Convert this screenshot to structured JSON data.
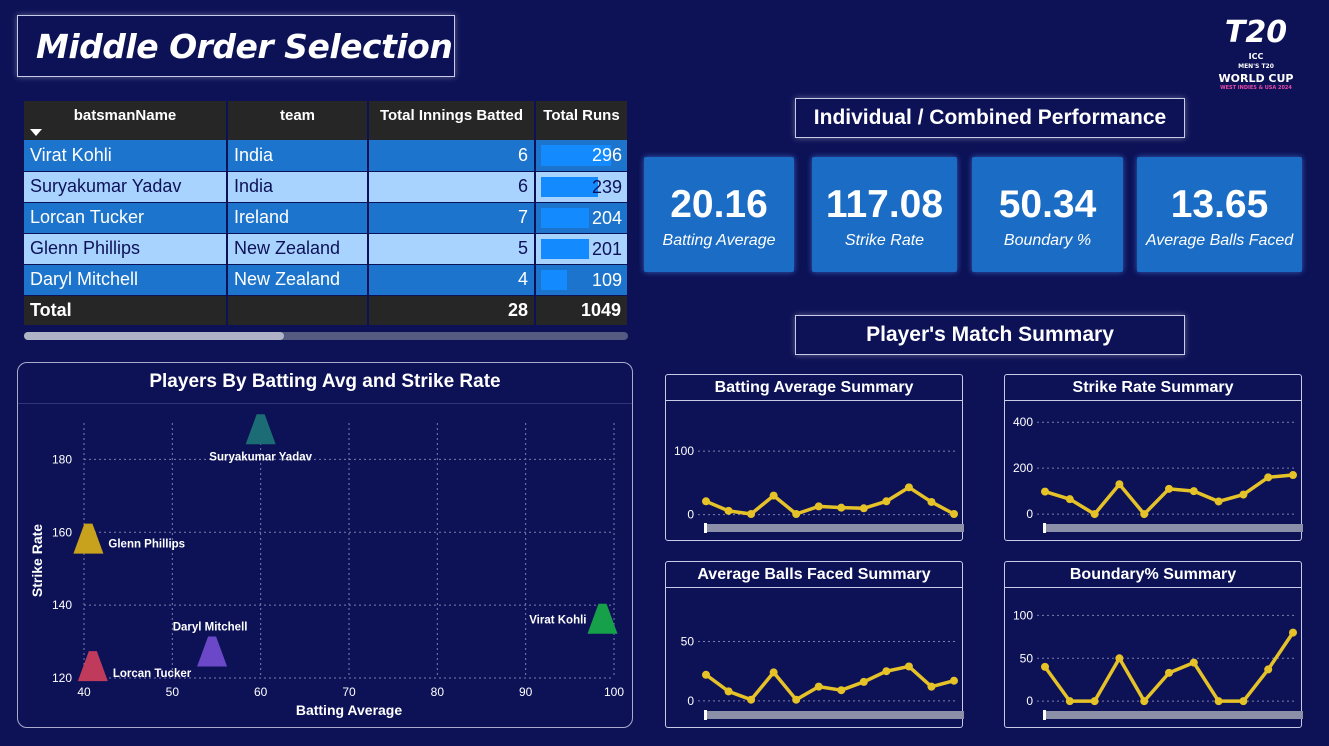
{
  "page_title": "Middle Order Selection",
  "logo": {
    "top": "T20",
    "icc": "ICC",
    "mens": "MEN'S T20",
    "wc": "WORLD CUP",
    "host": "WEST INDIES & USA 2024"
  },
  "table": {
    "headers": [
      "batsmanName",
      "team",
      "Total Innings Batted",
      "Total Runs"
    ],
    "rows": [
      {
        "name": "Virat Kohli",
        "team": "India",
        "innings": "6",
        "runs": "296",
        "runs_value": 296
      },
      {
        "name": "Suryakumar Yadav",
        "team": "India",
        "innings": "6",
        "runs": "239",
        "runs_value": 239
      },
      {
        "name": "Lorcan Tucker",
        "team": "Ireland",
        "innings": "7",
        "runs": "204",
        "runs_value": 204
      },
      {
        "name": "Glenn Phillips",
        "team": "New Zealand",
        "innings": "5",
        "runs": "201",
        "runs_value": 201
      },
      {
        "name": "Daryl Mitchell",
        "team": "New Zealand",
        "innings": "4",
        "runs": "109",
        "runs_value": 109
      }
    ],
    "total": {
      "label": "Total",
      "innings": "28",
      "runs": "1049"
    }
  },
  "performance": {
    "header": "Individual / Combined Performance",
    "kpis": [
      {
        "value": "20.16",
        "label": "Batting Average"
      },
      {
        "value": "117.08",
        "label": "Strike Rate"
      },
      {
        "value": "50.34",
        "label": "Boundary %"
      },
      {
        "value": "13.65",
        "label": "Average Balls Faced"
      }
    ]
  },
  "match_summary_header": "Player's Match Summary",
  "colors": {
    "background": "#0d1257",
    "kpi": "#1a6cc4",
    "line": "#e6c229",
    "row_dark": "#1d74cc",
    "row_light": "#a9d3ff",
    "runs_bar": "#148aff"
  },
  "chart_data": [
    {
      "type": "scatter",
      "title": "Players By Batting Avg and Strike Rate",
      "xlabel": "Batting Average",
      "ylabel": "Strike Rate",
      "xlim": [
        40,
        100
      ],
      "ylim": [
        120,
        190
      ],
      "xticks": [
        40,
        50,
        60,
        70,
        80,
        90,
        100
      ],
      "yticks": [
        120,
        140,
        160,
        180
      ],
      "grid": true,
      "points": [
        {
          "label": "Suryakumar Yadav",
          "x": 60,
          "y": 188,
          "color": "#1b6c74"
        },
        {
          "label": "Glenn Phillips",
          "x": 40.5,
          "y": 158,
          "color": "#c8a21c"
        },
        {
          "label": "Virat Kohli",
          "x": 98.7,
          "y": 136,
          "color": "#17a04a"
        },
        {
          "label": "Daryl Mitchell",
          "x": 54.5,
          "y": 127,
          "color": "#6a48c8"
        },
        {
          "label": "Lorcan Tucker",
          "x": 41,
          "y": 123,
          "color": "#c03a5c"
        }
      ]
    },
    {
      "type": "line",
      "title": "Batting Average Summary",
      "yticks": [
        0,
        100
      ],
      "ylim": [
        -10,
        160
      ],
      "values": [
        21,
        6,
        1,
        30,
        1,
        13,
        11,
        10,
        21,
        43,
        20,
        1
      ]
    },
    {
      "type": "line",
      "title": "Strike Rate Summary",
      "yticks": [
        0,
        200,
        400
      ],
      "ylim": [
        -30,
        440
      ],
      "values": [
        98,
        65,
        0,
        130,
        0,
        110,
        100,
        55,
        85,
        160,
        170
      ]
    },
    {
      "type": "line",
      "title": "Average Balls Faced Summary",
      "yticks": [
        0,
        50
      ],
      "ylim": [
        -6,
        85
      ],
      "values": [
        22,
        8,
        1,
        24,
        1,
        12,
        9,
        16,
        25,
        29,
        12,
        17
      ]
    },
    {
      "type": "line",
      "title": "Boundary% Summary",
      "yticks": [
        0,
        50,
        100
      ],
      "ylim": [
        -8,
        118
      ],
      "values": [
        40,
        0,
        0,
        50,
        0,
        33,
        45,
        0,
        0,
        37,
        80
      ]
    }
  ]
}
